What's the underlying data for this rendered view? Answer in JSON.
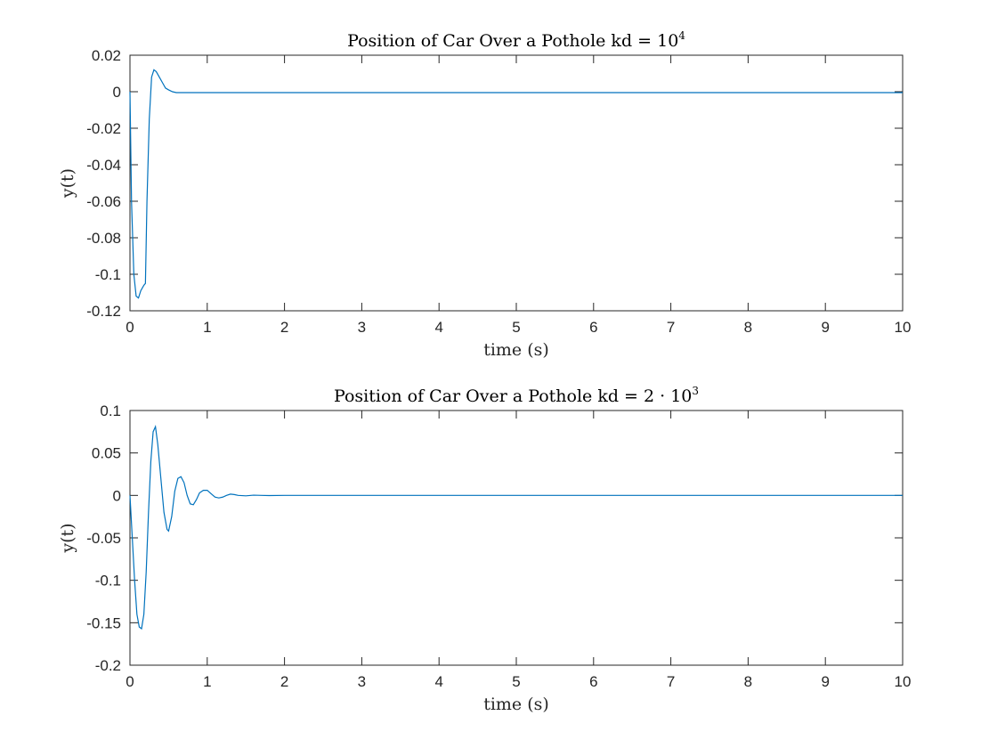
{
  "chart_data": [
    {
      "type": "line",
      "title_base": "Position of Car Over a Pothole kd = 10",
      "title_sup": "4",
      "xlabel": "time (s)",
      "ylabel": "y(t)",
      "xlim": [
        0,
        10
      ],
      "ylim": [
        -0.12,
        0.02
      ],
      "xticks": [
        "0",
        "1",
        "2",
        "3",
        "4",
        "5",
        "6",
        "7",
        "8",
        "9",
        "10"
      ],
      "yticks": [
        "0.02",
        "0",
        "-0.02",
        "-0.04",
        "-0.06",
        "-0.08",
        "-0.1",
        "-0.12"
      ],
      "grid": false,
      "line_color": "#0072BD",
      "series": [
        {
          "x": [
            0,
            0.02,
            0.05,
            0.08,
            0.11,
            0.14,
            0.18,
            0.2,
            0.22,
            0.25,
            0.28,
            0.31,
            0.34,
            0.38,
            0.42,
            0.46,
            0.5,
            0.55,
            0.6,
            0.7,
            0.8,
            1.0,
            2.0,
            4.0,
            6.0,
            8.0,
            10.0
          ],
          "y": [
            0,
            -0.06,
            -0.1,
            -0.112,
            -0.113,
            -0.109,
            -0.106,
            -0.105,
            -0.06,
            -0.015,
            0.008,
            0.012,
            0.011,
            0.008,
            0.005,
            0.002,
            0.001,
            0.0,
            -0.0005,
            -0.0005,
            -0.0005,
            -0.0005,
            -0.0005,
            -0.0005,
            -0.0005,
            -0.0005,
            -0.0005
          ]
        }
      ]
    },
    {
      "type": "line",
      "title_base": "Position of Car Over a Pothole kd = 2 · 10",
      "title_sup": "3",
      "xlabel": "time (s)",
      "ylabel": "y(t)",
      "xlim": [
        0,
        10
      ],
      "ylim": [
        -0.2,
        0.1
      ],
      "xticks": [
        "0",
        "1",
        "2",
        "3",
        "4",
        "5",
        "6",
        "7",
        "8",
        "9",
        "10"
      ],
      "yticks": [
        "0.1",
        "0.05",
        "0",
        "-0.05",
        "-0.1",
        "-0.15",
        "-0.2"
      ],
      "grid": false,
      "line_color": "#0072BD",
      "series": [
        {
          "x": [
            0,
            0.03,
            0.06,
            0.09,
            0.12,
            0.15,
            0.18,
            0.21,
            0.24,
            0.27,
            0.3,
            0.33,
            0.36,
            0.4,
            0.44,
            0.48,
            0.5,
            0.54,
            0.58,
            0.62,
            0.66,
            0.7,
            0.74,
            0.78,
            0.82,
            0.86,
            0.9,
            0.95,
            1.0,
            1.05,
            1.1,
            1.15,
            1.2,
            1.25,
            1.3,
            1.35,
            1.4,
            1.5,
            1.6,
            1.7,
            1.8,
            2.0,
            2.5,
            3.0,
            4.0,
            6.0,
            8.0,
            10.0
          ],
          "y": [
            0,
            -0.05,
            -0.1,
            -0.14,
            -0.155,
            -0.157,
            -0.14,
            -0.09,
            -0.02,
            0.04,
            0.075,
            0.081,
            0.06,
            0.02,
            -0.02,
            -0.04,
            -0.042,
            -0.025,
            0.005,
            0.02,
            0.022,
            0.015,
            0.0,
            -0.01,
            -0.011,
            -0.005,
            0.003,
            0.006,
            0.006,
            0.002,
            -0.002,
            -0.003,
            -0.002,
            0.0,
            0.0015,
            0.001,
            0.0,
            -0.0005,
            0.0003,
            0.0,
            -0.0002,
            0.0,
            0.0,
            0.0,
            0.0,
            0.0,
            0.0,
            0.0
          ]
        }
      ]
    }
  ]
}
